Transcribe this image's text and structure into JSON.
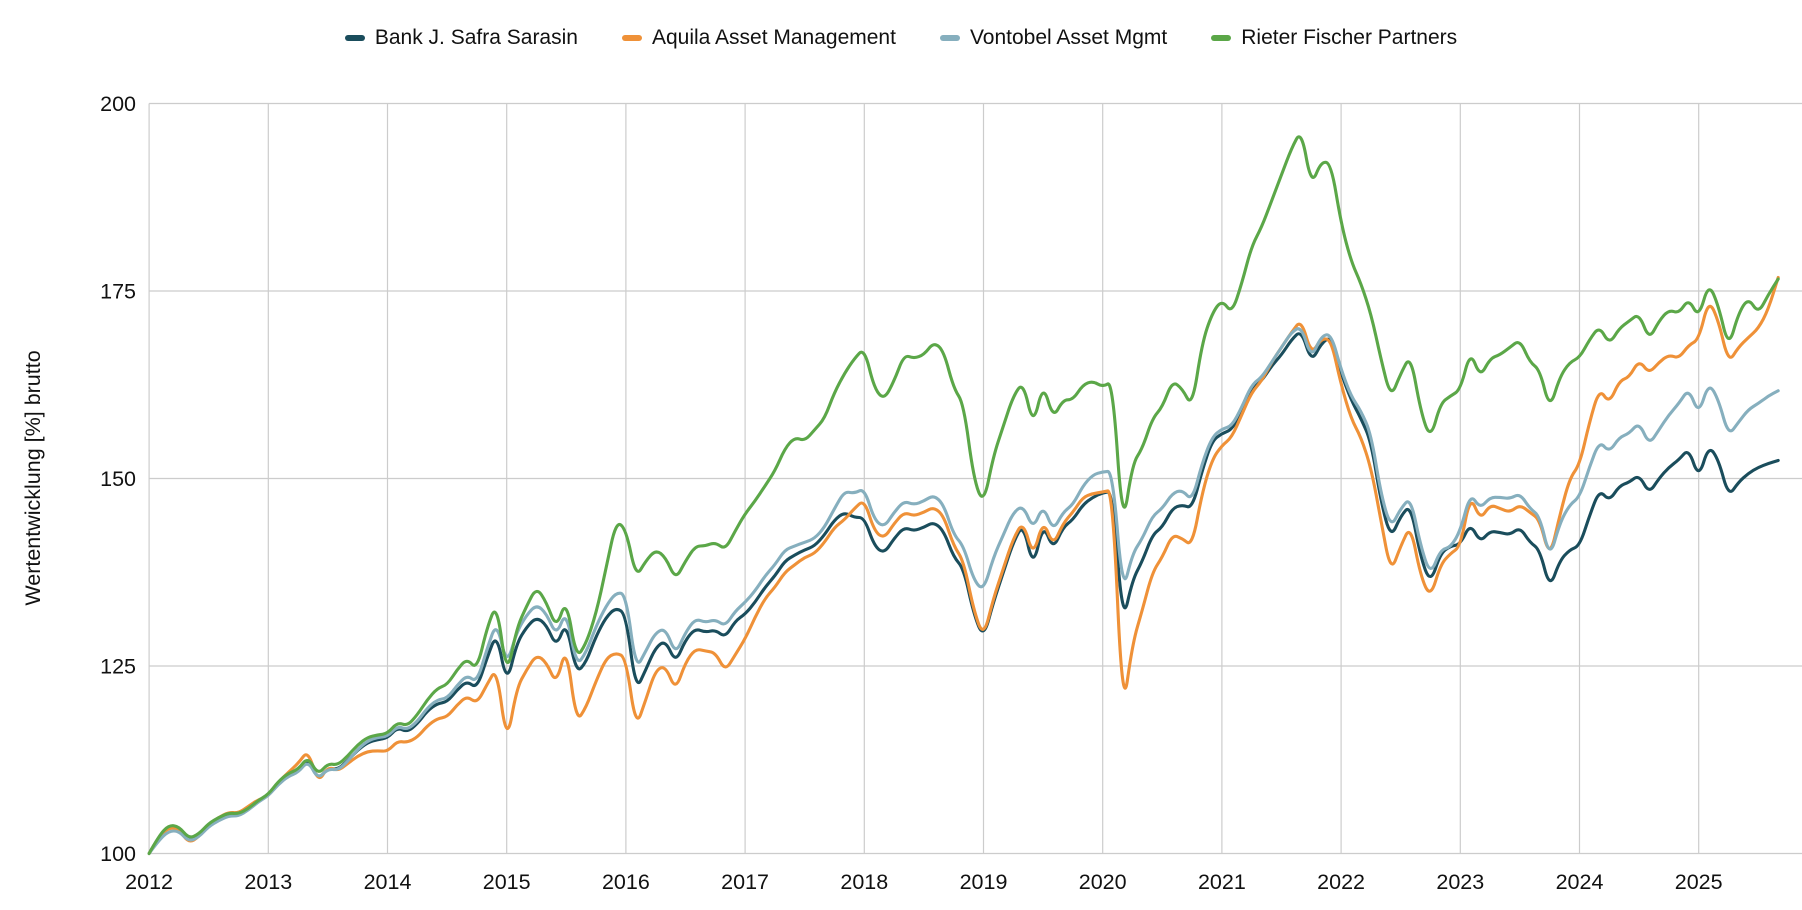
{
  "chart_data": {
    "type": "line",
    "title": "",
    "ylabel": "Wertentwicklung [%] brutto",
    "xlabel": "",
    "ylim": [
      100,
      200
    ],
    "yticks": [
      100,
      125,
      150,
      175,
      200
    ],
    "xticks": [
      2012,
      2013,
      2014,
      2015,
      2016,
      2017,
      2018,
      2019,
      2020,
      2021,
      2022,
      2023,
      2024,
      2025
    ],
    "x_start_year": 2012,
    "x_step": "monthly",
    "grid": true,
    "grid_color": "#cccccc",
    "background": "#ffffff",
    "legend_position": "top-center",
    "series": [
      {
        "name": "Bank J. Safra Sarasin",
        "color": "#1a4d5c",
        "values": [
          100,
          102.3,
          103.6,
          103.4,
          101.8,
          102.4,
          103.8,
          104.6,
          105.2,
          105.1,
          105.9,
          107.0,
          107.8,
          109.3,
          110.4,
          111.0,
          112.6,
          109.8,
          111.4,
          111.2,
          112.4,
          113.8,
          114.8,
          115.2,
          115.4,
          116.8,
          116.2,
          117.3,
          119.0,
          120.0,
          120.2,
          121.8,
          123.0,
          122.0,
          126.0,
          129.5,
          122.5,
          128.0,
          130.2,
          131.5,
          130.5,
          127.5,
          131.0,
          124.0,
          125.5,
          129.0,
          131.5,
          132.8,
          131.9,
          121.7,
          124.5,
          127.5,
          128.4,
          125.4,
          128.5,
          130.0,
          129.5,
          129.8,
          128.8,
          131.0,
          131.9,
          133.5,
          135.5,
          137.0,
          139.0,
          139.8,
          140.5,
          141.0,
          142.5,
          144.5,
          145.5,
          144.8,
          144.8,
          141.0,
          140.0,
          142.0,
          143.5,
          143.0,
          143.5,
          144.2,
          143.0,
          139.5,
          138.0,
          132.0,
          128.7,
          133.5,
          137.5,
          141.5,
          144.0,
          138.0,
          144.0,
          140.5,
          143.5,
          144.5,
          146.5,
          147.5,
          148.1,
          148.3,
          130.5,
          136.5,
          139.0,
          142.5,
          143.5,
          146.0,
          146.5,
          146.0,
          151.0,
          155.0,
          156.0,
          156.5,
          159.0,
          162.0,
          163.0,
          165.0,
          166.5,
          168.5,
          169.8,
          165.5,
          168.0,
          169.0,
          164.0,
          160.5,
          158.0,
          155.0,
          147.0,
          142.0,
          145.0,
          146.5,
          139.5,
          136.0,
          140.0,
          141.0,
          141.2,
          144.0,
          141.5,
          143.0,
          142.8,
          142.5,
          143.5,
          141.5,
          140.5,
          135.3,
          139.0,
          140.5,
          141.0,
          145.0,
          148.5,
          147.0,
          149.0,
          149.5,
          150.5,
          148.0,
          150.0,
          151.5,
          152.5,
          154.0,
          150.0,
          154.4,
          152.5,
          147.6,
          149.5,
          150.7,
          151.5,
          152.0,
          152.4
        ]
      },
      {
        "name": "Aquila Asset Management",
        "color": "#ef9138",
        "values": [
          100,
          102.2,
          103.5,
          103.2,
          101.4,
          102.2,
          103.9,
          104.8,
          105.5,
          105.4,
          106.3,
          107.2,
          107.6,
          109.5,
          110.8,
          112.0,
          113.8,
          109.4,
          111.6,
          111.0,
          112.0,
          113.0,
          113.6,
          113.7,
          113.6,
          115.0,
          114.8,
          115.5,
          117.0,
          118.0,
          118.2,
          119.8,
          121.0,
          120.0,
          122.5,
          124.8,
          114.5,
          122.0,
          124.5,
          126.5,
          125.5,
          122.5,
          127.8,
          117.5,
          119.5,
          123.0,
          126.0,
          126.8,
          126.1,
          116.7,
          120.5,
          124.5,
          125.0,
          121.7,
          125.5,
          127.3,
          127.0,
          126.8,
          124.3,
          126.5,
          128.6,
          131.5,
          134.0,
          135.5,
          137.5,
          138.5,
          139.5,
          140.0,
          141.5,
          143.5,
          144.5,
          146.0,
          147.2,
          143.0,
          142.0,
          144.0,
          145.5,
          145.0,
          145.5,
          146.2,
          145.0,
          141.0,
          139.0,
          132.5,
          128.8,
          134.0,
          138.0,
          142.0,
          144.3,
          139.5,
          144.5,
          141.0,
          144.0,
          145.5,
          147.5,
          148.0,
          148.2,
          148.5,
          118.4,
          128.0,
          132.5,
          137.5,
          139.5,
          142.5,
          142.0,
          141.0,
          148.0,
          152.5,
          154.4,
          155.5,
          158.5,
          161.5,
          163.0,
          165.5,
          167.5,
          169.5,
          171.2,
          166.5,
          168.7,
          168.5,
          162.5,
          158.0,
          155.5,
          151.5,
          144.5,
          137.4,
          141.0,
          143.8,
          137.0,
          134.1,
          138.5,
          140.0,
          140.9,
          147.8,
          144.5,
          146.5,
          146.0,
          145.5,
          146.5,
          145.5,
          144.5,
          139.3,
          145.0,
          150.0,
          151.8,
          157.5,
          162.0,
          160.0,
          163.0,
          163.5,
          165.8,
          164.0,
          165.5,
          166.5,
          166.0,
          167.8,
          168.5,
          173.9,
          171.0,
          165.4,
          167.5,
          168.8,
          170.0,
          172.5,
          176.8
        ]
      },
      {
        "name": "Vontobel Asset Mgmt",
        "color": "#86afbe",
        "values": [
          100,
          101.8,
          103.0,
          103.0,
          101.6,
          102.2,
          103.6,
          104.4,
          105.0,
          105.0,
          105.8,
          106.9,
          107.7,
          109.2,
          110.3,
          110.8,
          112.4,
          109.9,
          111.3,
          111.1,
          112.3,
          113.9,
          115.0,
          115.5,
          115.6,
          117.0,
          116.5,
          117.6,
          119.4,
          120.5,
          120.7,
          122.4,
          123.8,
          122.8,
          127.2,
          131.0,
          125.0,
          129.5,
          131.8,
          133.2,
          132.0,
          129.0,
          132.5,
          125.0,
          126.8,
          130.3,
          133.0,
          134.8,
          134.6,
          124.5,
          127.0,
          129.5,
          130.0,
          126.5,
          129.5,
          131.3,
          130.8,
          131.2,
          130.3,
          132.3,
          133.5,
          135.0,
          137.0,
          138.5,
          140.5,
          141.0,
          141.5,
          142.0,
          143.5,
          146.0,
          148.3,
          148.0,
          148.7,
          144.5,
          143.5,
          145.5,
          147.0,
          146.5,
          147.0,
          147.8,
          146.5,
          142.5,
          141.0,
          136.5,
          135.0,
          139.5,
          142.5,
          145.5,
          146.4,
          143.2,
          146.5,
          143.0,
          145.5,
          146.5,
          149.0,
          150.5,
          150.9,
          151.0,
          134.6,
          140.0,
          142.0,
          145.0,
          146.0,
          148.0,
          148.5,
          147.0,
          152.0,
          155.5,
          156.6,
          157.0,
          159.5,
          162.5,
          163.5,
          165.5,
          167.5,
          169.5,
          170.3,
          166.0,
          169.0,
          169.3,
          164.5,
          161.0,
          159.0,
          156.0,
          148.0,
          143.4,
          146.0,
          147.5,
          141.0,
          137.1,
          140.5,
          140.8,
          143.0,
          148.0,
          146.0,
          147.5,
          147.5,
          147.3,
          148.0,
          146.0,
          145.0,
          139.3,
          144.0,
          146.5,
          147.5,
          151.5,
          155.0,
          153.5,
          155.5,
          156.0,
          157.5,
          154.5,
          156.5,
          158.5,
          160.0,
          162.0,
          158.5,
          162.8,
          160.5,
          155.7,
          157.5,
          159.2,
          160.0,
          161.0,
          161.7
        ]
      },
      {
        "name": "Rieter Fischer Partners",
        "color": "#5ba748",
        "values": [
          100,
          102.4,
          103.8,
          103.6,
          102.0,
          102.6,
          104.0,
          104.8,
          105.4,
          105.3,
          106.0,
          107.1,
          107.9,
          109.6,
          110.7,
          111.2,
          112.9,
          110.5,
          112.0,
          111.8,
          113.0,
          114.5,
          115.5,
          115.8,
          116.0,
          117.5,
          117.0,
          118.5,
          120.5,
          122.0,
          122.5,
          124.5,
          126.0,
          124.5,
          130.0,
          133.5,
          123.5,
          130.0,
          133.0,
          135.5,
          133.5,
          130.0,
          134.0,
          126.0,
          128.0,
          132.0,
          138.0,
          144.3,
          143.3,
          136.8,
          139.0,
          140.5,
          139.5,
          136.5,
          139.0,
          141.0,
          141.0,
          141.5,
          140.5,
          143.0,
          145.3,
          147.0,
          149.0,
          151.0,
          154.0,
          155.5,
          155.0,
          156.5,
          158.0,
          161.5,
          164.0,
          166.0,
          167.4,
          162.0,
          160.5,
          163.0,
          166.5,
          166.0,
          166.5,
          168.2,
          167.0,
          162.0,
          160.0,
          150.0,
          146.5,
          153.0,
          157.0,
          161.0,
          162.9,
          156.9,
          162.7,
          158.0,
          160.5,
          160.5,
          162.5,
          163.0,
          162.2,
          163.0,
          143.1,
          152.0,
          154.0,
          158.0,
          159.5,
          163.0,
          162.0,
          159.5,
          168.0,
          172.0,
          173.8,
          172.0,
          176.0,
          181.0,
          183.5,
          187.0,
          190.5,
          194.0,
          196.5,
          189.0,
          192.3,
          192.0,
          184.0,
          179.0,
          176.0,
          172.0,
          166.0,
          160.7,
          164.0,
          166.5,
          159.0,
          155.2,
          160.0,
          161.0,
          161.8,
          167.0,
          163.5,
          166.0,
          166.5,
          167.5,
          168.5,
          165.5,
          164.5,
          159.2,
          163.5,
          165.5,
          166.1,
          168.5,
          170.3,
          167.9,
          170.0,
          171.0,
          172.0,
          168.5,
          171.0,
          172.5,
          172.0,
          174.0,
          171.4,
          176.1,
          173.0,
          167.4,
          172.0,
          174.1,
          172.0,
          174.5,
          176.6
        ]
      }
    ]
  }
}
